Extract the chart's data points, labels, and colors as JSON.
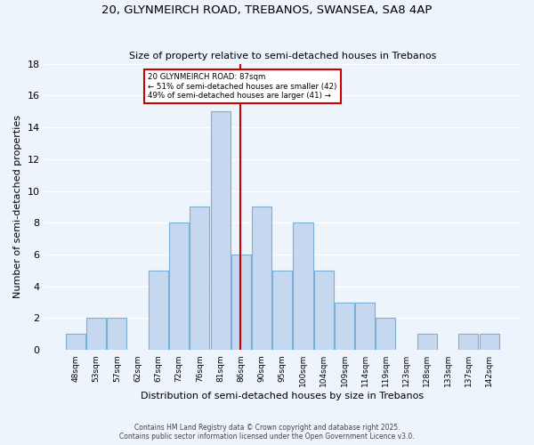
{
  "title": "20, GLYNMEIRCH ROAD, TREBANOS, SWANSEA, SA8 4AP",
  "subtitle": "Size of property relative to semi-detached houses in Trebanos",
  "xlabel": "Distribution of semi-detached houses by size in Trebanos",
  "ylabel": "Number of semi-detached properties",
  "bin_labels": [
    "48sqm",
    "53sqm",
    "57sqm",
    "62sqm",
    "67sqm",
    "72sqm",
    "76sqm",
    "81sqm",
    "86sqm",
    "90sqm",
    "95sqm",
    "100sqm",
    "104sqm",
    "109sqm",
    "114sqm",
    "119sqm",
    "123sqm",
    "128sqm",
    "133sqm",
    "137sqm",
    "142sqm"
  ],
  "counts": [
    1,
    2,
    2,
    0,
    5,
    8,
    9,
    15,
    6,
    9,
    5,
    8,
    5,
    3,
    3,
    2,
    0,
    1,
    0,
    1,
    1
  ],
  "bar_color": "#c5d8f0",
  "bar_edge_color": "#7bafd4",
  "vline_x": 8,
  "vline_color": "#cc0000",
  "annotation_title": "20 GLYNMEIRCH ROAD: 87sqm",
  "annotation_line1": "← 51% of semi-detached houses are smaller (42)",
  "annotation_line2": "49% of semi-detached houses are larger (41) →",
  "annotation_box_edge": "#cc0000",
  "background_color": "#eef4fb",
  "footer_line1": "Contains HM Land Registry data © Crown copyright and database right 2025.",
  "footer_line2": "Contains public sector information licensed under the Open Government Licence v3.0.",
  "ylim": [
    0,
    18
  ],
  "yticks": [
    0,
    2,
    4,
    6,
    8,
    10,
    12,
    14,
    16,
    18
  ]
}
